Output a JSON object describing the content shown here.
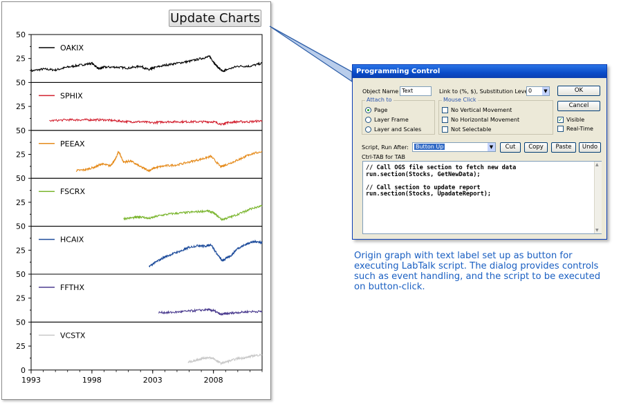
{
  "graph": {
    "button_label": "Update Charts"
  },
  "chart_data": {
    "type": "line",
    "xlim": [
      1993,
      2012
    ],
    "x_ticks": [
      "1993",
      "1998",
      "2003",
      "2008"
    ],
    "ylim": [
      0,
      50
    ],
    "y_ticks_top_panel": [
      "50",
      "25",
      "0"
    ],
    "y_ticks_panel": [
      "50",
      "25"
    ],
    "bottom_tick": "0",
    "series": [
      {
        "name": "OAKIX",
        "color": "#000000",
        "x": [
          1993,
          1994,
          1995,
          1996,
          1997,
          1998,
          1998.6,
          1999,
          2000,
          2001,
          2002,
          2002.7,
          2003,
          2004,
          2005,
          2006,
          2007,
          2007.7,
          2008.2,
          2008.8,
          2009,
          2010,
          2011,
          2012
        ],
        "y": [
          12,
          14,
          13,
          16,
          18,
          20,
          14,
          16,
          16,
          15,
          17,
          13,
          15,
          18,
          20,
          22,
          25,
          27,
          18,
          11,
          13,
          17,
          17,
          20
        ]
      },
      {
        "name": "SPHIX",
        "color": "#d21f2e",
        "x": [
          1994.5,
          1996,
          1997,
          1998,
          1999,
          2000,
          2001,
          2002,
          2003,
          2004,
          2005,
          2006,
          2007,
          2008,
          2008.8,
          2009,
          2010,
          2011,
          2012
        ],
        "y": [
          10,
          11,
          11,
          11,
          11,
          10,
          9,
          9,
          8,
          9,
          9,
          9,
          9,
          9,
          6,
          8,
          9,
          9,
          10
        ]
      },
      {
        "name": "PEEAX",
        "color": "#e58a1a",
        "x": [
          1996.7,
          1997.5,
          1998.3,
          1998.8,
          1999.5,
          1999.9,
          2000.2,
          2000.6,
          2001.2,
          2002,
          2002.7,
          2003.2,
          2004,
          2005,
          2006,
          2007,
          2007.8,
          2008.6,
          2009,
          2009.8,
          2010.5,
          2011,
          2012
        ],
        "y": [
          8,
          9,
          12,
          15,
          13,
          19,
          28,
          17,
          18,
          12,
          8,
          11,
          13,
          14,
          17,
          20,
          23,
          12,
          14,
          18,
          22,
          25,
          28
        ]
      },
      {
        "name": "FSCRX",
        "color": "#7ab52e",
        "x": [
          2000.6,
          2001.5,
          2002,
          2002.7,
          2003.5,
          2004.5,
          2005.5,
          2006.5,
          2007.5,
          2008,
          2008.7,
          2009.5,
          2010.5,
          2011,
          2012
        ],
        "y": [
          8,
          9,
          10,
          8,
          11,
          13,
          14,
          15,
          16,
          14,
          7,
          10,
          15,
          18,
          21
        ]
      },
      {
        "name": "HCAIX",
        "color": "#1f4d9c",
        "x": [
          2002.7,
          2003.3,
          2004,
          2004.8,
          2005.5,
          2006,
          2006.8,
          2007.3,
          2007.8,
          2008.3,
          2008.7,
          2009,
          2009.5,
          2010,
          2010.5,
          2011,
          2011.5,
          2012
        ],
        "y": [
          8,
          13,
          18,
          22,
          25,
          28,
          30,
          29,
          31,
          21,
          14,
          16,
          20,
          27,
          30,
          33,
          34,
          33
        ]
      },
      {
        "name": "FFTHX",
        "color": "#4b3c8f",
        "x": [
          2003.5,
          2004.5,
          2005.5,
          2006.5,
          2007.5,
          2008,
          2008.6,
          2009.2,
          2010,
          2011,
          2012
        ],
        "y": [
          10,
          10,
          11,
          12,
          13,
          12,
          8,
          9,
          10,
          11,
          11
        ]
      },
      {
        "name": "VCSTX",
        "color": "#c8c8c8",
        "x": [
          2005.9,
          2006.5,
          2007,
          2007.5,
          2008,
          2008.6,
          2009.2,
          2010,
          2010.7,
          2011.3,
          2012
        ],
        "y": [
          8,
          10,
          12,
          13,
          12,
          7,
          9,
          12,
          13,
          15,
          16
        ]
      }
    ]
  },
  "dialog": {
    "title": "Programming Control",
    "object_name_label": "Object Name",
    "object_name_value": "Text",
    "link_to_label": "Link to (%, $), Substitution Level",
    "substitution_level_value": "0",
    "ok_label": "OK",
    "cancel_label": "Cancel",
    "attach_to_label": "Attach to",
    "attach_options": [
      "Page",
      "Layer Frame",
      "Layer and Scales"
    ],
    "attach_selected": "Page",
    "mouse_click_label": "Mouse Click",
    "mouse_options": [
      "No Vertical Movement",
      "No Horizontal Movement",
      "Not Selectable"
    ],
    "visible_label": "Visible",
    "realtime_label": "Real-Time",
    "script_run_after_label": "Script, Run After:",
    "run_after_value": "Button Up",
    "cut_label": "Cut",
    "copy_label": "Copy",
    "paste_label": "Paste",
    "undo_label": "Undo",
    "ctrl_tab_label": "Ctrl-TAB for TAB",
    "script_lines": [
      "// Call OGS file section to fetch new data",
      "run.section(Stocks, GetNewData);",
      "",
      "// Call section to update report",
      "run.section(Stocks, UpadateReport);"
    ]
  },
  "caption": "Origin graph with text label set up as button for executing LabTalk script. The dialog provides controls such as event handling, and the script to be executed on button-click."
}
